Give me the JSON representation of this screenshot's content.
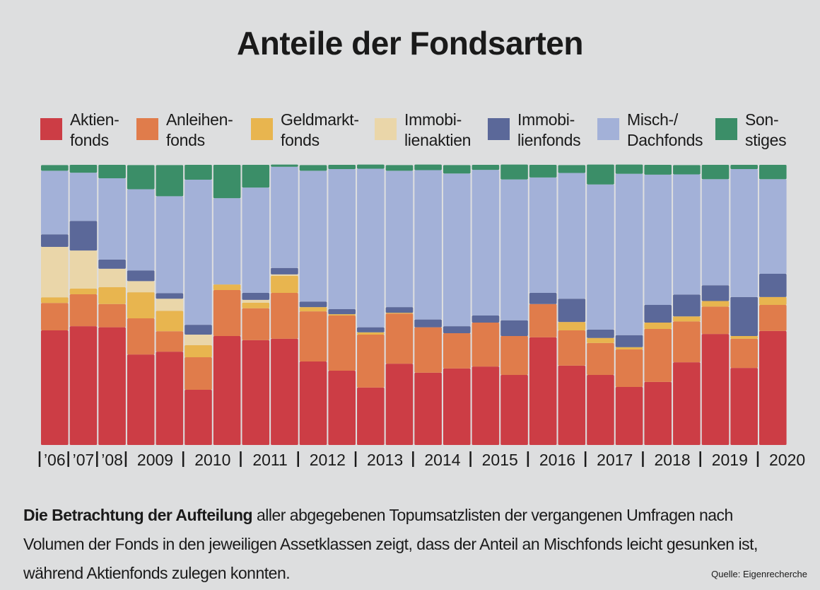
{
  "chart_data": {
    "type": "stacked_bar",
    "title": "Anteile der Fondsarten",
    "categories": [
      "’06",
      "’07",
      "’08",
      "2009",
      null,
      "2010",
      null,
      "2011",
      null,
      "2012",
      null,
      "2013",
      null,
      "2014",
      null,
      "2015",
      null,
      "2016",
      null,
      "2017",
      null,
      "2018",
      null,
      "2019",
      null,
      "2020"
    ],
    "ylim": [
      0,
      100
    ],
    "series": [
      {
        "name": "Aktien-\nfonds",
        "color": "#cc3d45",
        "values": [
          40.9,
          42.4,
          42,
          32.3,
          33.3,
          19.7,
          38.9,
          37.4,
          37.9,
          29.8,
          26.5,
          20.5,
          29,
          25.8,
          27.3,
          28,
          25,
          38.4,
          28.3,
          25,
          20.7,
          22.5,
          29.5,
          39.6,
          27.5,
          40.7
        ]
      },
      {
        "name": "Anleihen-\nfonds",
        "color": "#e07c4b",
        "values": [
          9.8,
          11.4,
          8.3,
          12.9,
          7.3,
          11.6,
          16.4,
          11.4,
          16.4,
          17.9,
          19.7,
          18.9,
          17.9,
          16.2,
          12.6,
          15.7,
          13.9,
          11.9,
          12.6,
          11.4,
          13.4,
          18.9,
          14.6,
          9.8,
          10.4,
          9.3
        ]
      },
      {
        "name": "Geldmarkt-\nfonds",
        "color": "#e8b54f",
        "values": [
          2,
          2,
          6,
          9.3,
          7.3,
          4.3,
          2,
          2,
          6.1,
          1.5,
          0.5,
          0.8,
          0.3,
          0,
          0,
          0,
          0,
          0,
          3,
          1.8,
          0.8,
          2.3,
          1.8,
          2,
          1,
          2.8
        ]
      },
      {
        "name": "Immobi-\nlienaktien",
        "color": "#ead6a9",
        "values": [
          18,
          13.6,
          6.6,
          4,
          4.3,
          3.8,
          0,
          1,
          0.5,
          0,
          0,
          0,
          0,
          0,
          0,
          0,
          0,
          0,
          0,
          0,
          0,
          0,
          0,
          0,
          0,
          0
        ]
      },
      {
        "name": "Immobi-\nlienfonds",
        "color": "#5b6899",
        "values": [
          4.5,
          10.6,
          3.3,
          3.8,
          2,
          3.5,
          0,
          2.5,
          2.3,
          2,
          1.8,
          1.8,
          2,
          2.8,
          2.5,
          2.5,
          5.6,
          4,
          8.3,
          3,
          4.3,
          6.3,
          7.8,
          5.6,
          13.9,
          8.3
        ]
      },
      {
        "name": "Misch-/\nDachfonds",
        "color": "#a3b1d8",
        "values": [
          22.7,
          17.2,
          29,
          29,
          34.6,
          51.8,
          30.8,
          37.6,
          36.1,
          46.7,
          50,
          56.6,
          48.7,
          53.3,
          54.5,
          52,
          50.3,
          41.2,
          44.9,
          51.8,
          57.6,
          46.5,
          42.9,
          37.9,
          45.7,
          33.8
        ]
      },
      {
        "name": "Son-\nstiges",
        "color": "#3b8e68",
        "values": [
          2,
          2.8,
          4.8,
          8.6,
          11.1,
          5.3,
          11.9,
          8.1,
          0.8,
          2,
          1.5,
          1.5,
          2,
          2,
          3,
          1.8,
          5.3,
          4.5,
          2.8,
          7.1,
          3.3,
          3.5,
          3.3,
          5.1,
          1.5,
          5.1
        ]
      }
    ]
  },
  "caption": {
    "bold": "Die Betrachtung der Aufteilung",
    "text": " aller abgegebenen Topumsatzlisten der vergangenen Umfragen nach Volumen der Fonds in den jeweiligen Assetklassen zeigt, dass der Anteil an Mischfonds leicht gesunken ist, während Aktienfonds zulegen konnten."
  },
  "source": "Quelle: Eigenrecherche"
}
